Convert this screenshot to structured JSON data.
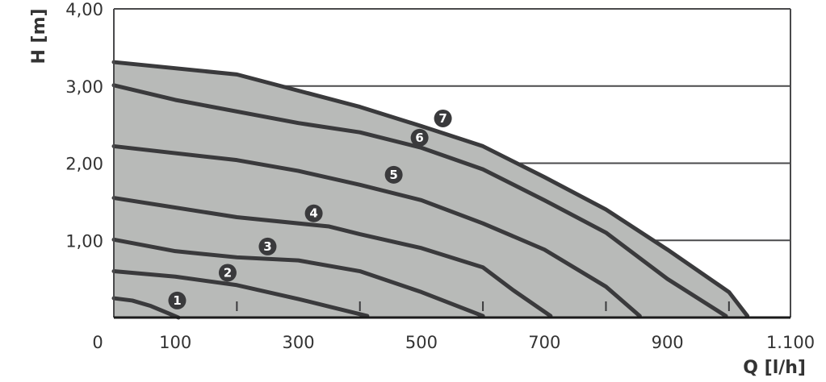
{
  "chart_data": {
    "type": "line",
    "xlabel": "Q [l/h]",
    "ylabel": "H [m]",
    "xlim": [
      0,
      1100
    ],
    "ylim": [
      0,
      4
    ],
    "x_ticks": [
      0,
      100,
      300,
      500,
      700,
      900,
      1100
    ],
    "x_tick_labels": [
      "0",
      "100",
      "300",
      "500",
      "700",
      "900",
      "1.100"
    ],
    "x_minor_ticks": [
      200,
      400,
      600,
      800,
      1000
    ],
    "y_ticks": [
      1,
      2,
      3,
      4
    ],
    "y_tick_labels": [
      "1,00",
      "2,00",
      "3,00",
      "4,00"
    ],
    "grid": "horizontal",
    "area_fill_color": "#b8bab8",
    "line_color": "#3a3a3c",
    "series": [
      {
        "name": "1",
        "label_at": [
          103,
          0.22
        ],
        "points": [
          [
            0,
            0.25
          ],
          [
            30,
            0.22
          ],
          [
            60,
            0.15
          ],
          [
            90,
            0.05
          ],
          [
            105,
            0
          ]
        ]
      },
      {
        "name": "2",
        "label_at": [
          185,
          0.58
        ],
        "points": [
          [
            0,
            0.6
          ],
          [
            100,
            0.53
          ],
          [
            200,
            0.42
          ],
          [
            300,
            0.24
          ],
          [
            412,
            0.02
          ]
        ]
      },
      {
        "name": "3",
        "label_at": [
          250,
          0.92
        ],
        "points": [
          [
            0,
            1.01
          ],
          [
            100,
            0.86
          ],
          [
            200,
            0.78
          ],
          [
            300,
            0.74
          ],
          [
            400,
            0.6
          ],
          [
            500,
            0.33
          ],
          [
            600,
            0.02
          ]
        ]
      },
      {
        "name": "4",
        "label_at": [
          325,
          1.35
        ],
        "points": [
          [
            0,
            1.55
          ],
          [
            200,
            1.3
          ],
          [
            350,
            1.18
          ],
          [
            400,
            1.08
          ],
          [
            500,
            0.9
          ],
          [
            600,
            0.65
          ],
          [
            650,
            0.35
          ],
          [
            710,
            0.02
          ]
        ]
      },
      {
        "name": "5",
        "label_at": [
          455,
          1.85
        ],
        "points": [
          [
            0,
            2.22
          ],
          [
            200,
            2.04
          ],
          [
            300,
            1.9
          ],
          [
            400,
            1.72
          ],
          [
            500,
            1.52
          ],
          [
            600,
            1.22
          ],
          [
            700,
            0.88
          ],
          [
            800,
            0.4
          ],
          [
            855,
            0.02
          ]
        ]
      },
      {
        "name": "6",
        "label_at": [
          497,
          2.33
        ],
        "points": [
          [
            0,
            3.01
          ],
          [
            100,
            2.82
          ],
          [
            300,
            2.52
          ],
          [
            400,
            2.4
          ],
          [
            500,
            2.2
          ],
          [
            600,
            1.92
          ],
          [
            700,
            1.52
          ],
          [
            800,
            1.1
          ],
          [
            900,
            0.5
          ],
          [
            995,
            0.02
          ]
        ]
      },
      {
        "name": "7",
        "label_at": [
          535,
          2.58
        ],
        "points": [
          [
            0,
            3.31
          ],
          [
            200,
            3.15
          ],
          [
            400,
            2.73
          ],
          [
            500,
            2.48
          ],
          [
            600,
            2.22
          ],
          [
            700,
            1.82
          ],
          [
            800,
            1.4
          ],
          [
            900,
            0.88
          ],
          [
            1000,
            0.33
          ],
          [
            1030,
            0.02
          ]
        ]
      }
    ]
  }
}
